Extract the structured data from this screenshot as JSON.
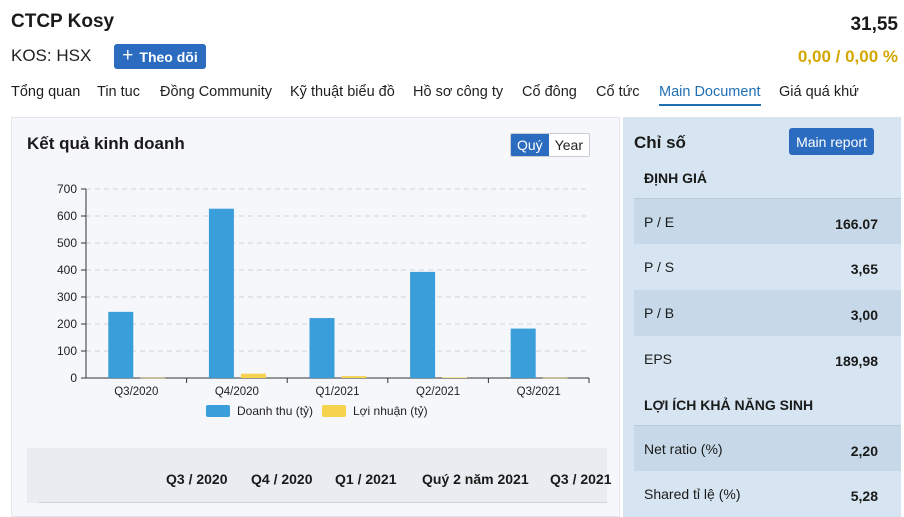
{
  "header": {
    "company_name": "CTCP Kosy",
    "ticker": "KOS: HSX",
    "follow_label": "Theo dõi",
    "price": "31,55",
    "change": "0,00 / 0,00 %"
  },
  "tabs": [
    {
      "label": "Tổng quan"
    },
    {
      "label": "Tin tuc"
    },
    {
      "label": "Đồng Community"
    },
    {
      "label": "Kỹ thuật biểu đồ"
    },
    {
      "label": "Hồ sơ công ty"
    },
    {
      "label": "Cổ đông"
    },
    {
      "label": "Cổ tức"
    },
    {
      "label": "Main Document"
    },
    {
      "label": "Giá quá khứ"
    }
  ],
  "active_tab": "Main Document",
  "results": {
    "title": "Kết quả kinh doanh",
    "toggle": {
      "quarter": "Quý",
      "year": "Year",
      "selected": "Quý"
    }
  },
  "chart_data": {
    "type": "bar",
    "categories": [
      "Q3/2020",
      "Q4/2020",
      "Q1/2021",
      "Q2/2021",
      "Q3/2021"
    ],
    "series": [
      {
        "name": "Doanh thu (tỷ)",
        "values": [
          245,
          627,
          222,
          393,
          183
        ],
        "color": "#3a9edb"
      },
      {
        "name": "Lợi nhuận (tỷ)",
        "values": [
          1,
          16,
          7,
          2,
          1
        ],
        "color": "#f5d34e"
      }
    ],
    "ylim": [
      0,
      700
    ],
    "yticks": [
      0,
      100,
      200,
      300,
      400,
      500,
      600,
      700
    ],
    "grid": true,
    "legend_position": "bottom"
  },
  "table": {
    "columns": [
      "Q3 / 2020",
      "Q4 / 2020",
      "Q1 / 2021",
      "Quý 2 năm 2021",
      "Q3 / 2021"
    ]
  },
  "ratios": {
    "title": "Chỉ số",
    "report_button": "Main report",
    "valuation_title": "ĐỊNH GIÁ",
    "valuation": [
      {
        "label": "P / E",
        "value": "166.07"
      },
      {
        "label": "P / S",
        "value": "3,65"
      },
      {
        "label": "P / B",
        "value": "3,00"
      },
      {
        "label": "EPS",
        "value": "189,98"
      }
    ],
    "profit_title": "LỢI ÍCH KHẢ NĂNG SINH",
    "profitability": [
      {
        "label": "Net ratio (%)",
        "value": "2,20"
      },
      {
        "label": "Shared tỉ lệ (%)",
        "value": "5,28"
      }
    ]
  }
}
